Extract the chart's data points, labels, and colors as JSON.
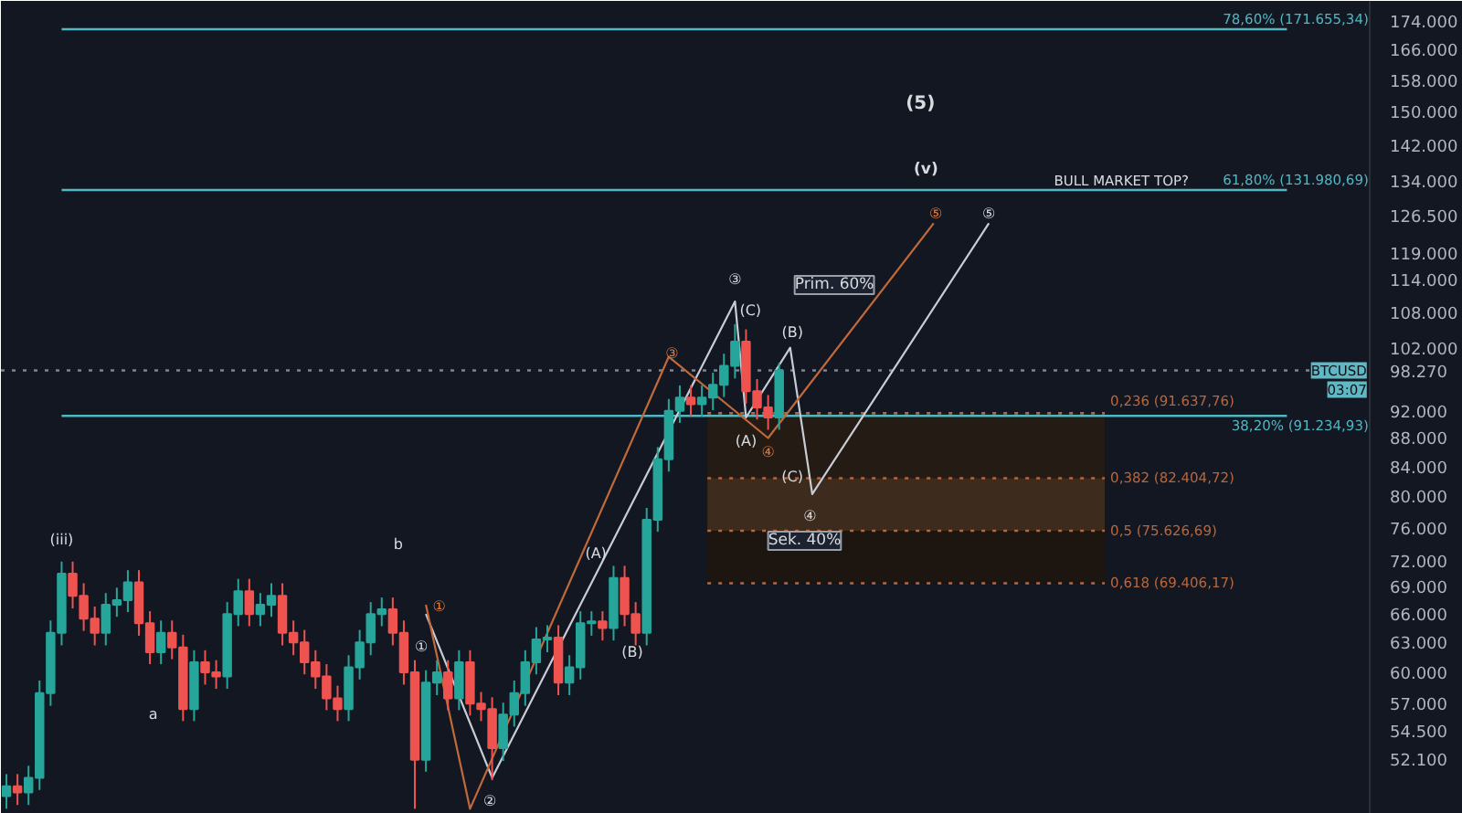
{
  "chart_data": {
    "type": "candlestick",
    "categories": [
      null,
      null,
      null,
      null,
      null,
      null,
      null,
      null,
      null,
      null,
      null,
      null,
      null,
      null,
      null,
      null,
      null,
      null,
      null,
      null,
      null,
      null,
      null,
      null,
      null,
      null,
      null,
      null,
      null,
      null,
      null,
      null,
      null,
      null,
      null,
      null,
      null,
      null,
      null,
      null,
      null,
      null,
      null,
      null,
      null,
      null,
      null,
      null,
      null,
      null,
      null,
      null,
      null,
      null,
      null,
      null,
      null,
      null,
      null,
      null,
      null,
      null,
      null,
      null,
      null,
      null,
      null,
      null,
      null,
      null,
      null,
      null,
      null,
      null,
      null,
      null,
      null,
      null,
      null,
      null,
      null,
      null,
      null,
      null,
      null,
      null,
      null,
      null,
      null,
      null,
      null,
      null,
      null,
      null,
      null,
      null,
      null,
      null,
      null,
      null,
      null,
      null,
      null,
      null,
      null,
      null,
      null,
      null,
      null,
      null,
      null,
      null,
      null,
      null,
      null,
      null,
      null,
      null,
      null,
      null,
      null,
      null,
      null,
      null
    ],
    "ohlc": [
      [
        49000,
        50800,
        48000,
        49800
      ],
      [
        49800,
        50800,
        48300,
        49300
      ],
      [
        49300,
        51500,
        48300,
        50500
      ],
      [
        50500,
        59200,
        49500,
        58000
      ],
      [
        58000,
        65300,
        56800,
        64000
      ],
      [
        64000,
        71900,
        62700,
        70500
      ],
      [
        70500,
        71900,
        66600,
        68000
      ],
      [
        68000,
        69400,
        64200,
        65500
      ],
      [
        65500,
        66800,
        62700,
        64000
      ],
      [
        64000,
        68300,
        62700,
        67000
      ],
      [
        67000,
        68900,
        65700,
        67500
      ],
      [
        67500,
        70900,
        66200,
        69500
      ],
      [
        69500,
        70900,
        63700,
        65000
      ],
      [
        65000,
        66300,
        60800,
        62000
      ],
      [
        62000,
        65300,
        60800,
        64000
      ],
      [
        64000,
        65300,
        61300,
        62500
      ],
      [
        62500,
        63800,
        55400,
        56500
      ],
      [
        56500,
        62200,
        55400,
        61000
      ],
      [
        61000,
        62200,
        58800,
        60000
      ],
      [
        60000,
        61200,
        58400,
        59600
      ],
      [
        59600,
        67300,
        58400,
        66000
      ],
      [
        66000,
        69900,
        64700,
        68500
      ],
      [
        68500,
        69900,
        64700,
        66000
      ],
      [
        66000,
        68300,
        64700,
        67000
      ],
      [
        67000,
        69400,
        65700,
        68000
      ],
      [
        68000,
        69400,
        62700,
        64000
      ],
      [
        64000,
        65300,
        61700,
        63000
      ],
      [
        63000,
        64300,
        59800,
        61000
      ],
      [
        61000,
        62200,
        58400,
        59600
      ],
      [
        59600,
        60800,
        56400,
        57500
      ],
      [
        57500,
        58700,
        55400,
        56500
      ],
      [
        56500,
        61700,
        55400,
        60500
      ],
      [
        60500,
        64300,
        59300,
        63000
      ],
      [
        63000,
        67300,
        61700,
        66000
      ],
      [
        66000,
        67800,
        64700,
        66500
      ],
      [
        66500,
        67800,
        62700,
        64000
      ],
      [
        64000,
        65300,
        58800,
        60000
      ],
      [
        60000,
        61200,
        48000,
        52000
      ],
      [
        52000,
        60200,
        51000,
        59000
      ],
      [
        59000,
        61200,
        57800,
        60000
      ],
      [
        60000,
        61200,
        56400,
        57500
      ],
      [
        57500,
        62200,
        56400,
        61000
      ],
      [
        61000,
        62200,
        55900,
        57000
      ],
      [
        57000,
        58100,
        55400,
        56500
      ],
      [
        56500,
        57600,
        50300,
        53000
      ],
      [
        53000,
        57100,
        51900,
        56000
      ],
      [
        56000,
        59200,
        54900,
        58000
      ],
      [
        58000,
        62200,
        56800,
        61000
      ],
      [
        61000,
        64600,
        59800,
        63300
      ],
      [
        63300,
        64800,
        62000,
        63500
      ],
      [
        63500,
        64800,
        57800,
        59000
      ],
      [
        59000,
        61700,
        57800,
        60500
      ],
      [
        60500,
        66300,
        59300,
        65000
      ],
      [
        65000,
        66300,
        63700,
        65200
      ],
      [
        65200,
        66300,
        63200,
        64500
      ],
      [
        64500,
        71400,
        63200,
        70000
      ],
      [
        70000,
        71400,
        64700,
        66000
      ],
      [
        66000,
        67300,
        62700,
        64000
      ],
      [
        64000,
        78500,
        62700,
        77000
      ],
      [
        77000,
        86700,
        75500,
        85000
      ],
      [
        85000,
        93800,
        83300,
        92000
      ],
      [
        92000,
        95900,
        90200,
        94000
      ],
      [
        94000,
        95900,
        91100,
        93000
      ],
      [
        93000,
        95900,
        91100,
        94000
      ],
      [
        94000,
        97900,
        92100,
        96000
      ],
      [
        96000,
        101000,
        94100,
        99000
      ],
      [
        99000,
        106000,
        97000,
        103000
      ],
      [
        103000,
        105100,
        93100,
        95000
      ],
      [
        95000,
        96900,
        90700,
        92500
      ],
      [
        92500,
        94400,
        89200,
        91000
      ],
      [
        91000,
        99500,
        89200,
        98270
      ],
      null,
      null,
      null,
      null,
      null,
      null,
      null,
      null,
      null,
      null,
      null,
      null,
      null,
      null,
      null,
      null,
      null,
      null,
      null,
      null,
      null,
      null,
      null,
      null,
      null,
      null,
      null,
      null,
      null,
      null,
      null,
      null,
      null,
      null,
      null,
      null,
      null,
      null,
      null,
      null,
      null,
      null,
      null,
      null,
      null,
      null,
      null,
      null,
      null,
      null,
      null,
      null,
      null
    ],
    "series": [
      {
        "type": "line",
        "color": "#c8ccd4",
        "values": [
          null,
          null,
          null,
          null,
          null,
          null,
          null,
          null,
          null,
          null,
          null,
          null,
          null,
          null,
          null,
          null,
          null,
          null,
          null,
          null,
          null,
          null,
          null,
          null,
          null,
          null,
          null,
          null,
          null,
          null,
          null,
          null,
          null,
          null,
          null,
          null,
          null,
          null,
          66000,
          null,
          null,
          null,
          null,
          null,
          50500,
          null,
          null,
          null,
          null,
          null,
          null,
          null,
          null,
          null,
          null,
          null,
          null,
          null,
          null,
          null,
          null,
          null,
          null,
          null,
          null,
          null,
          110000,
          91000,
          null,
          null,
          null,
          102000,
          null,
          80300,
          null,
          null,
          null,
          null,
          null,
          null,
          null,
          null,
          null,
          null,
          null,
          null,
          null,
          null,
          null,
          125000,
          null,
          null,
          null,
          null,
          null,
          null,
          null,
          null,
          null,
          null,
          null,
          null,
          null,
          null,
          null,
          null,
          null,
          null,
          null,
          null,
          null,
          null,
          null,
          null,
          null,
          null,
          null,
          null,
          null,
          null,
          null,
          null,
          null,
          null
        ]
      },
      {
        "type": "line",
        "color": "#c0693a",
        "values": [
          null,
          null,
          null,
          null,
          null,
          null,
          null,
          null,
          null,
          null,
          null,
          null,
          null,
          null,
          null,
          null,
          null,
          null,
          null,
          null,
          null,
          null,
          null,
          null,
          null,
          null,
          null,
          null,
          null,
          null,
          null,
          null,
          null,
          null,
          null,
          null,
          null,
          null,
          67000,
          null,
          null,
          null,
          48000,
          null,
          null,
          null,
          null,
          null,
          null,
          null,
          null,
          null,
          null,
          null,
          null,
          null,
          null,
          null,
          null,
          null,
          100500,
          null,
          null,
          null,
          null,
          null,
          null,
          null,
          null,
          88000,
          null,
          null,
          null,
          null,
          null,
          null,
          null,
          null,
          null,
          null,
          null,
          null,
          null,
          null,
          125000,
          null,
          null,
          null,
          null,
          null,
          null,
          null,
          null,
          null,
          null,
          null,
          null,
          null,
          null,
          null,
          null,
          null,
          null,
          null,
          null,
          null,
          null,
          null,
          null,
          null,
          null,
          null,
          null,
          null,
          null,
          null,
          null,
          null,
          null,
          null,
          null,
          null,
          null,
          null
        ]
      }
    ],
    "log": true,
    "ylim": [
      47600,
      179800
    ],
    "yticks": [
      {
        "value": 52100,
        "label": "52.100"
      },
      {
        "value": 54500,
        "label": "54.500"
      },
      {
        "value": 57000,
        "label": "57.000"
      },
      {
        "value": 60000,
        "label": "60.000"
      },
      {
        "value": 63000,
        "label": "63.000"
      },
      {
        "value": 66000,
        "label": "66.000"
      },
      {
        "value": 69000,
        "label": "69.000"
      },
      {
        "value": 72000,
        "label": "72.000"
      },
      {
        "value": 76000,
        "label": "76.000"
      },
      {
        "value": 80000,
        "label": "80.000"
      },
      {
        "value": 84000,
        "label": "84.000"
      },
      {
        "value": 88000,
        "label": "88.000"
      },
      {
        "value": 92000,
        "label": "92.000"
      },
      {
        "value": 98270,
        "label": "98.270"
      },
      {
        "value": 102000,
        "label": "102.000"
      },
      {
        "value": 108000,
        "label": "108.000"
      },
      {
        "value": 114000,
        "label": "114.000"
      },
      {
        "value": 119000,
        "label": "119.000"
      },
      {
        "value": 126500,
        "label": "126.500"
      },
      {
        "value": 134000,
        "label": "134.000"
      },
      {
        "value": 142000,
        "label": "142.000"
      },
      {
        "value": 150000,
        "label": "150.000"
      },
      {
        "value": 158000,
        "label": "158.000"
      },
      {
        "value": 166000,
        "label": "166.000"
      },
      {
        "value": 174000,
        "label": "174.000"
      }
    ],
    "tick_labels": "y",
    "bands": [
      {
        "axis": "y",
        "from": 82404.72,
        "to": 91637.76,
        "color": "#241b14"
      },
      {
        "axis": "y",
        "from": 75626.69,
        "to": 82404.72,
        "color": "#3d2b1d"
      },
      {
        "axis": "y",
        "from": 69406.17,
        "to": 75626.69,
        "color": "#1c1510"
      }
    ],
    "ref_lines": [
      {
        "axis": "y",
        "value": 171655.34,
        "label": "78,60% (171.655,34)",
        "color": "#4fb6c2"
      },
      {
        "axis": "y",
        "value": 131980.69,
        "label": "61,80% (131.980,69)",
        "color": "#4fb6c2"
      },
      {
        "axis": "y",
        "value": 91234.93,
        "label": "38,20% (91.234,93)",
        "color": "#4fb6c2"
      },
      {
        "axis": "y",
        "value": 91637.76,
        "label": "0,236 (91.637,76)",
        "color": "#b8673c",
        "line_style": "dotted"
      },
      {
        "axis": "y",
        "value": 82404.72,
        "label": "0,382 (82.404,72)",
        "color": "#b8673c",
        "line_style": "dotted"
      },
      {
        "axis": "y",
        "value": 75626.69,
        "label": "0,5 (75.626,69)",
        "color": "#b8673c",
        "line_style": "dotted"
      },
      {
        "axis": "y",
        "value": 69406.17,
        "label": "0,618 (69.406,17)",
        "color": "#b8673c",
        "line_style": "dotted"
      },
      {
        "axis": "y",
        "value": 98270,
        "label": "BTCUSD",
        "color": "#7f8590",
        "line_style": "dotted"
      }
    ],
    "annotations": [
      "(iii)",
      "a",
      "b",
      "①",
      "①",
      "②",
      "(A)",
      "(B)",
      "③",
      "③",
      "(C)",
      "(A)",
      "④",
      "(B)",
      "(C)",
      "④",
      "Sek. 40%",
      "Prim. 60%",
      "⑤",
      "⑤",
      "(v)",
      "(5)",
      "BULL MARKET TOP?",
      "03:07"
    ]
  }
}
